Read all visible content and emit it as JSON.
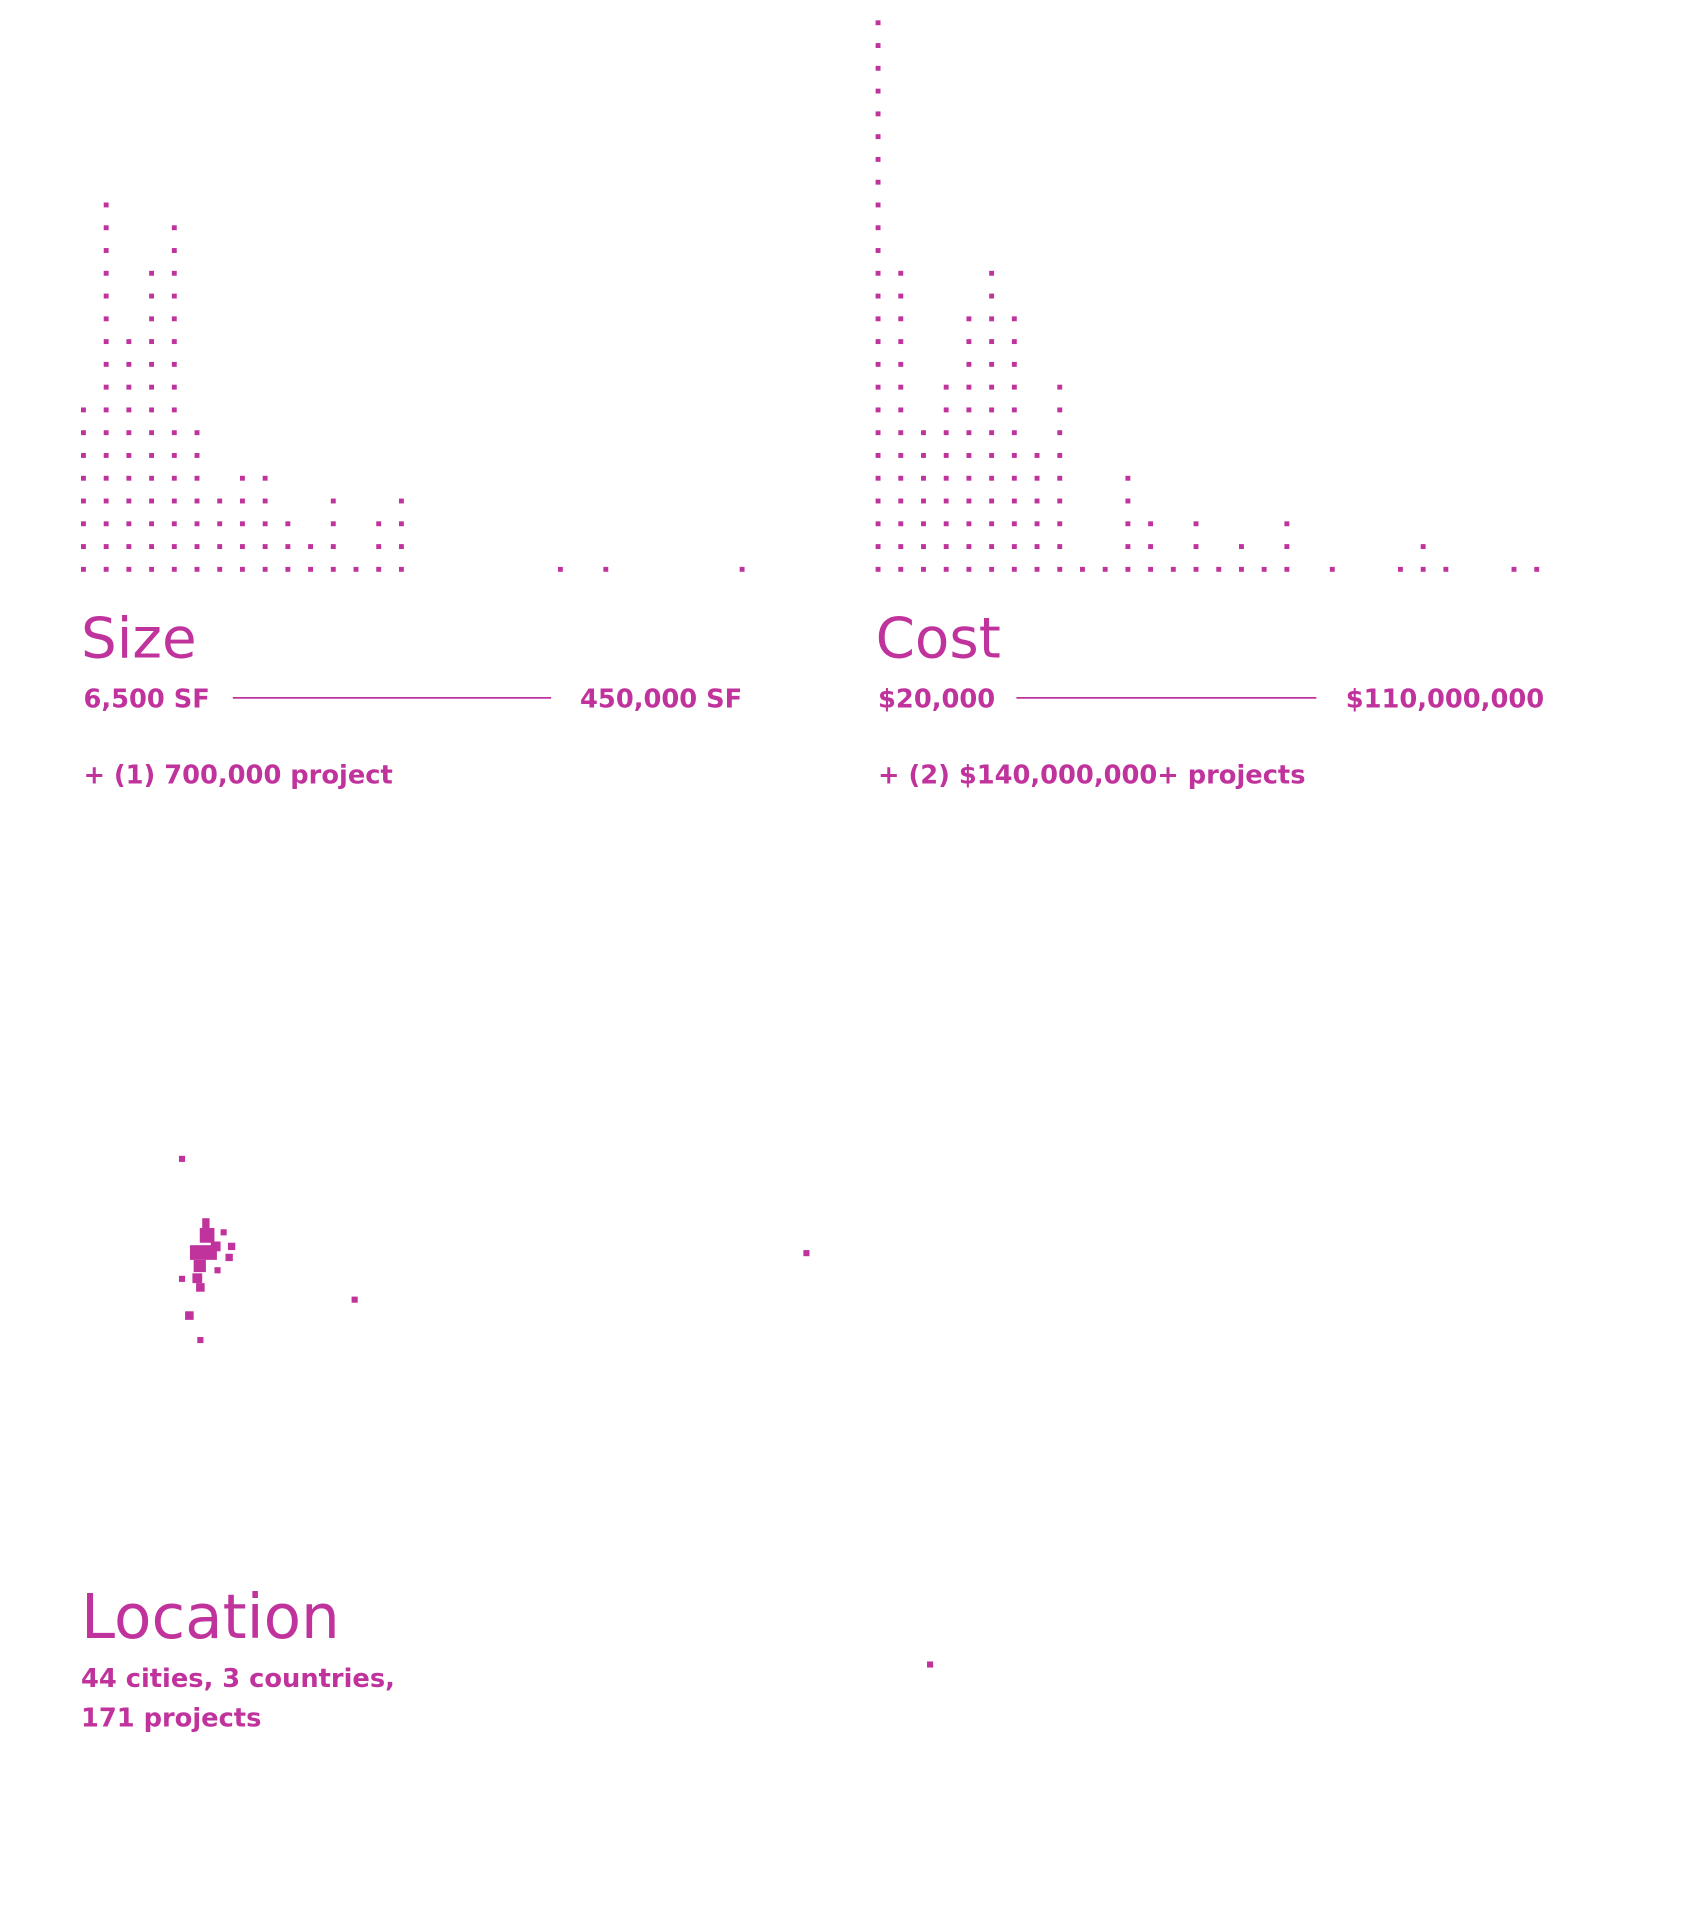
{
  "chart_data": [
    {
      "type": "dot-histogram",
      "title": "Size",
      "min_label": "6,500 SF",
      "max_label": "450,000 SF",
      "note": "+ (1) 700,000 project",
      "values": [
        8,
        17,
        11,
        14,
        16,
        7,
        4,
        5,
        5,
        3,
        2,
        4,
        1,
        3,
        4,
        0,
        0,
        0,
        0,
        0,
        0,
        1,
        0,
        1,
        0,
        0,
        0,
        0,
        0,
        1
      ],
      "color": "#c0339c"
    },
    {
      "type": "dot-histogram",
      "title": "Cost",
      "min_label": "$20,000",
      "max_label": "$110,000,000",
      "note": "+ (2) $140,000,000+ projects",
      "values": [
        25,
        14,
        7,
        9,
        12,
        14,
        12,
        6,
        9,
        1,
        1,
        5,
        3,
        1,
        3,
        1,
        2,
        1,
        3,
        0,
        1,
        0,
        0,
        1,
        2,
        1,
        0,
        0,
        1,
        1
      ],
      "color": "#c0339c"
    }
  ],
  "location": {
    "title": "Location",
    "lines": [
      "44 cities, 3 countries,",
      "171 projects"
    ]
  }
}
